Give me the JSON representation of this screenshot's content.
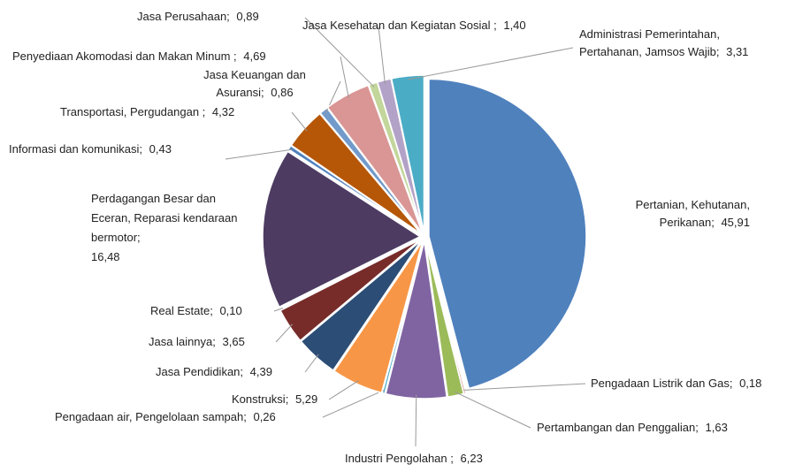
{
  "chart_data": {
    "type": "pie",
    "categories": [
      "Pertanian, Kehutanan, Perikanan;",
      "Pengadaan Listrik dan Gas;",
      "Pertambangan dan Penggalian;",
      "Industri Pengolahan ;",
      "Pengadaan air, Pengelolaan sampah;",
      "Konstruksi;",
      "Jasa Pendidikan;",
      "Jasa lainnya;",
      "Real Estate;",
      "Perdagangan Besar dan Eceran, Reparasi kendaraan bermotor;",
      "Informasi dan komunikasi;",
      "Transportasi, Pergudangan ;",
      "Jasa Keuangan dan Asuransi;",
      "Penyediaan Akomodasi dan Makan Minum ;",
      "Jasa Perusahaan;",
      "Jasa Kesehatan dan Kegiatan Sosial ;",
      "Administrasi Pemerintahan, Pertahanan, Jamsos Wajib;"
    ],
    "values": [
      45.91,
      0.18,
      1.63,
      6.23,
      0.26,
      5.29,
      4.39,
      3.65,
      0.1,
      16.48,
      0.43,
      4.32,
      0.86,
      4.69,
      0.89,
      1.4,
      3.31
    ],
    "value_labels": [
      "45,91",
      "0,18",
      "1,63",
      "6,23",
      "0,26",
      "5,29",
      "4,39",
      "3,65",
      "0,10",
      "16,48",
      "0,43",
      "4,32",
      "0,86",
      "4,69",
      "0,89",
      "1,40",
      "3,31"
    ],
    "colors": [
      "#4f81bd",
      "#c0504d",
      "#9bbb59",
      "#8064a2",
      "#4bacc6",
      "#f79646",
      "#2c4d75",
      "#772c2a",
      "#5f7530",
      "#4d3b62",
      "#4f81bd",
      "#b65708",
      "#729aca",
      "#d99694",
      "#c3d69b",
      "#b3a2c7",
      "#4bacc6"
    ]
  }
}
